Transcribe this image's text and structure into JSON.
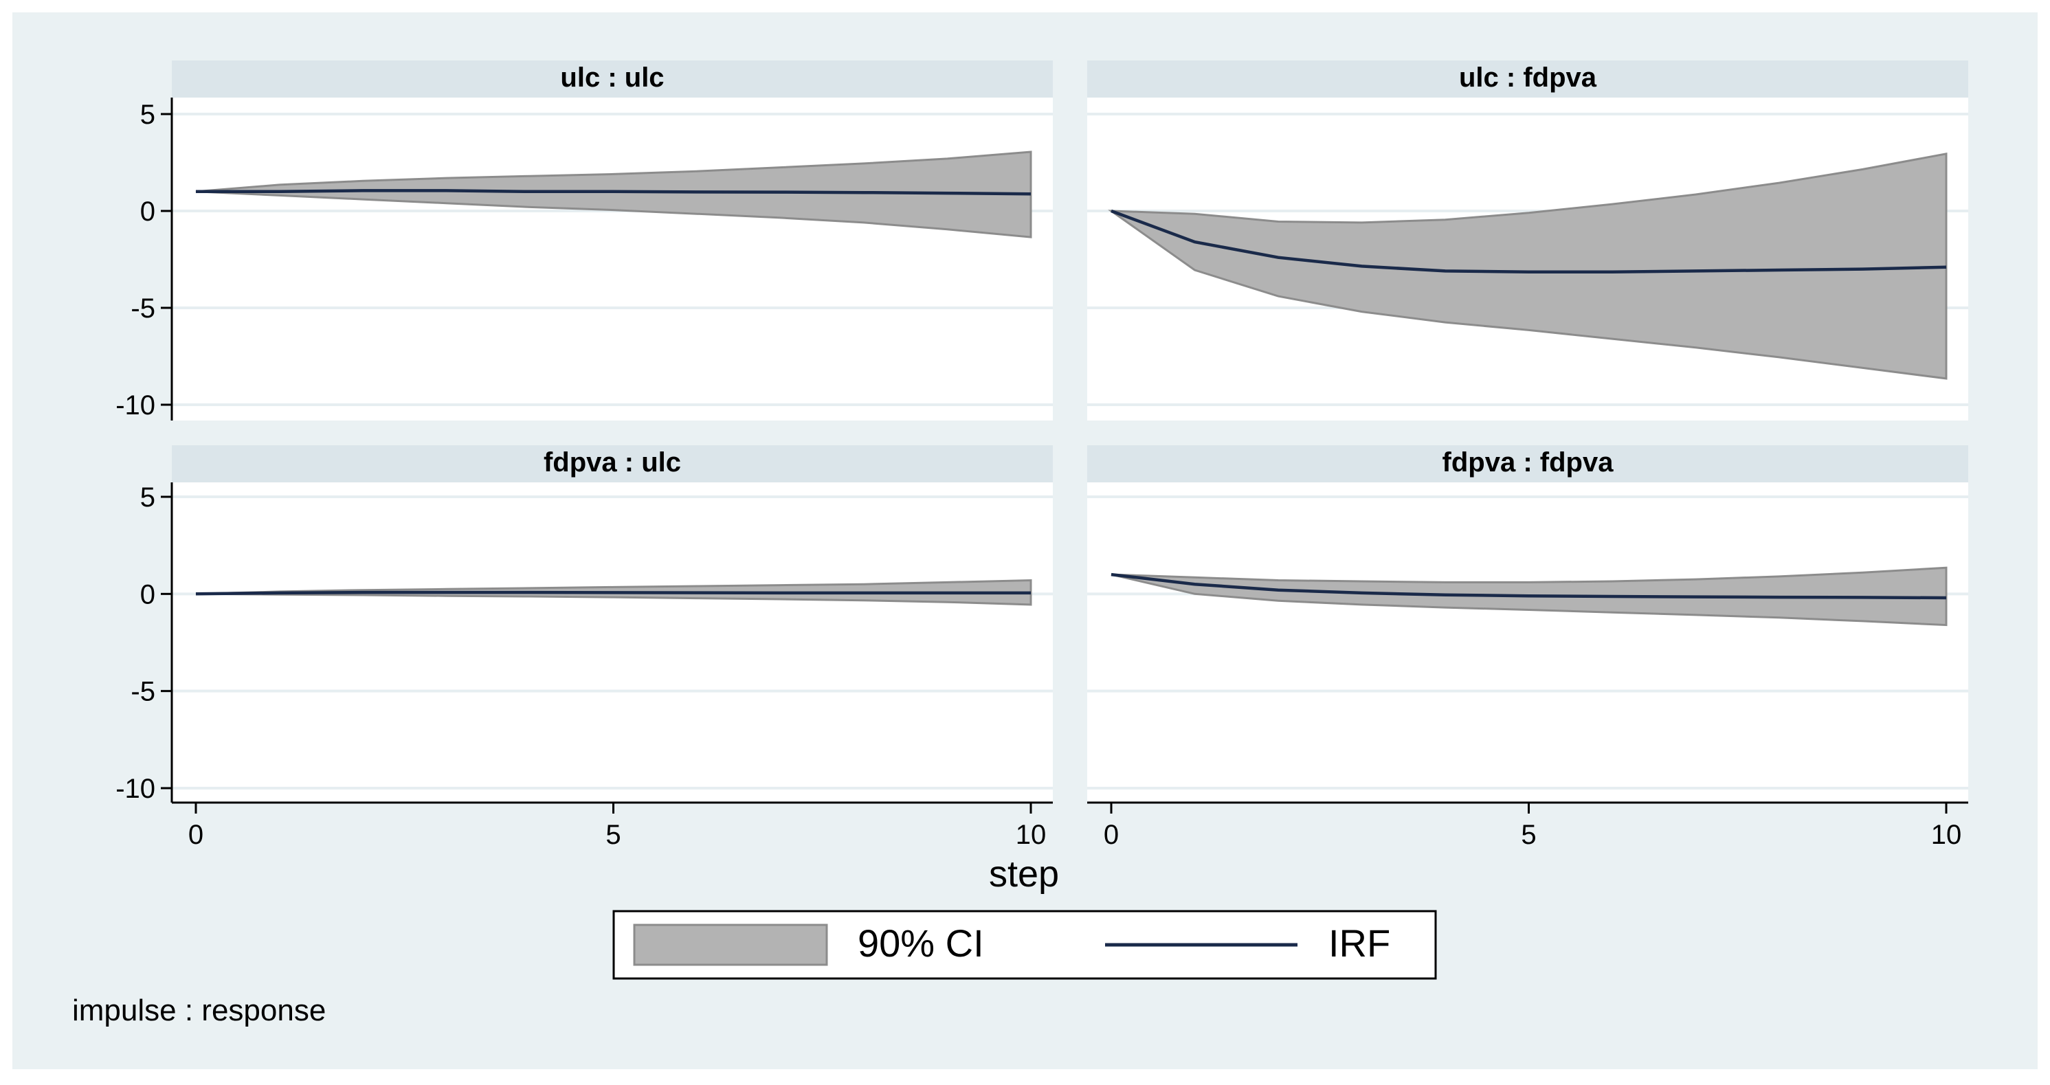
{
  "chart_data": {
    "type": "area",
    "x": [
      0,
      1,
      2,
      3,
      4,
      5,
      6,
      7,
      8,
      9,
      10
    ],
    "xlim": [
      0,
      10
    ],
    "ylim": [
      -10,
      5
    ],
    "xticks": [
      0,
      5,
      10
    ],
    "yticks": [
      5,
      0,
      -5,
      -10
    ],
    "xlabel": "step",
    "note": "impulse : response",
    "grid": true,
    "legend_position": "bottom",
    "colors": {
      "ci_fill": "#b3b3b3",
      "ci_edge": "#8c8c8c",
      "irf_line": "#1a2a4a",
      "panel_header": "#dbe5ea",
      "outer_bg": "#eaf1f3",
      "gridline": "#e6eef1"
    },
    "legend": [
      {
        "label": "90% CI",
        "kind": "band"
      },
      {
        "label": "IRF",
        "kind": "line"
      }
    ],
    "panels": [
      {
        "title": "ulc : ulc",
        "irf": [
          1,
          1.0,
          1.05,
          1.05,
          1.0,
          1.0,
          0.98,
          0.97,
          0.95,
          0.92,
          0.88
        ],
        "upper": [
          1,
          1.35,
          1.55,
          1.7,
          1.8,
          1.9,
          2.05,
          2.25,
          2.45,
          2.7,
          3.05
        ],
        "lower": [
          1,
          0.8,
          0.6,
          0.4,
          0.2,
          0.05,
          -0.15,
          -0.35,
          -0.6,
          -0.95,
          -1.35
        ]
      },
      {
        "title": "ulc : fdpva",
        "irf": [
          0,
          -1.6,
          -2.4,
          -2.85,
          -3.1,
          -3.15,
          -3.15,
          -3.1,
          -3.05,
          -3.0,
          -2.9
        ],
        "upper": [
          0,
          -0.15,
          -0.55,
          -0.6,
          -0.45,
          -0.1,
          0.35,
          0.85,
          1.45,
          2.15,
          2.95
        ],
        "lower": [
          0,
          -3.05,
          -4.4,
          -5.2,
          -5.75,
          -6.15,
          -6.6,
          -7.05,
          -7.55,
          -8.1,
          -8.65
        ]
      },
      {
        "title": "fdpva : ulc",
        "irf": [
          0,
          0.05,
          0.08,
          0.08,
          0.08,
          0.07,
          0.06,
          0.05,
          0.05,
          0.05,
          0.05
        ],
        "upper": [
          0,
          0.12,
          0.2,
          0.25,
          0.3,
          0.35,
          0.4,
          0.45,
          0.5,
          0.6,
          0.7
        ],
        "lower": [
          0,
          -0.03,
          -0.06,
          -0.1,
          -0.13,
          -0.17,
          -0.22,
          -0.27,
          -0.33,
          -0.42,
          -0.55
        ]
      },
      {
        "title": "fdpva : fdpva",
        "irf": [
          1,
          0.5,
          0.2,
          0.05,
          -0.05,
          -0.1,
          -0.13,
          -0.15,
          -0.17,
          -0.18,
          -0.2
        ],
        "upper": [
          1,
          0.85,
          0.7,
          0.65,
          0.6,
          0.6,
          0.65,
          0.75,
          0.9,
          1.1,
          1.35
        ],
        "lower": [
          1,
          0.0,
          -0.35,
          -0.55,
          -0.7,
          -0.82,
          -0.95,
          -1.08,
          -1.22,
          -1.4,
          -1.6
        ]
      }
    ]
  }
}
